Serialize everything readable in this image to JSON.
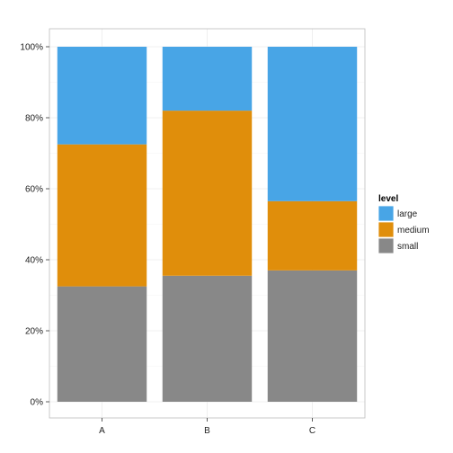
{
  "chart_data": {
    "type": "bar",
    "stacked": true,
    "percent": true,
    "categories": [
      "A",
      "B",
      "C"
    ],
    "series": [
      {
        "name": "small",
        "color": "#888888",
        "values": [
          32.5,
          35.5,
          37.0
        ]
      },
      {
        "name": "medium",
        "color": "#E08E0B",
        "values": [
          40.0,
          46.5,
          19.5
        ]
      },
      {
        "name": "large",
        "color": "#48A5E6",
        "values": [
          27.5,
          18.0,
          43.5
        ]
      }
    ],
    "ylim": [
      0,
      100
    ],
    "yticks": [
      0,
      20,
      40,
      60,
      80,
      100
    ],
    "ytick_labels": [
      "0%",
      "20%",
      "40%",
      "60%",
      "80%",
      "100%"
    ],
    "grid": true,
    "legend": {
      "title": "level",
      "position": "right",
      "order": [
        "large",
        "medium",
        "small"
      ]
    },
    "xlabel": "",
    "ylabel": "",
    "title": ""
  }
}
